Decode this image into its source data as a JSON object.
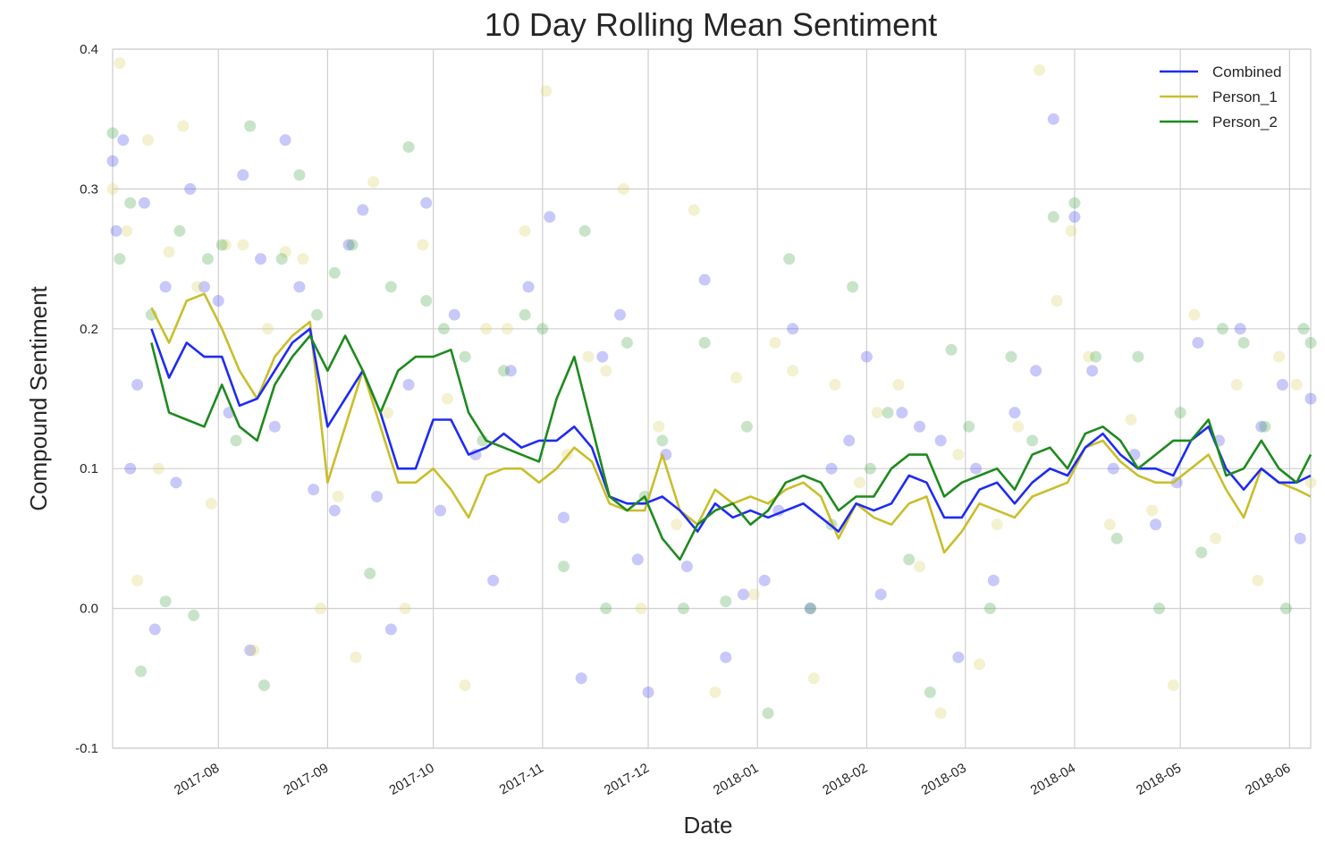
{
  "chart_data": {
    "type": "line",
    "title": "10 Day Rolling Mean Sentiment",
    "xlabel": "Date",
    "ylabel": "Compound Sentiment",
    "ylim": [
      -0.1,
      0.4
    ],
    "xlim": [
      "2017-07-02",
      "2018-06-07"
    ],
    "grid": true,
    "legend_position": "top-right",
    "y_ticks": [
      "-0.1",
      "0.0",
      "0.1",
      "0.2",
      "0.3",
      "0.4"
    ],
    "x_ticks": [
      "2017-08",
      "2017-09",
      "2017-10",
      "2017-11",
      "2017-12",
      "2018-01",
      "2018-02",
      "2018-03",
      "2018-04",
      "2018-05",
      "2018-06"
    ],
    "x_tick_dates": [
      "2017-08-01",
      "2017-09-01",
      "2017-10-01",
      "2017-11-01",
      "2017-12-01",
      "2018-01-01",
      "2018-02-01",
      "2018-03-01",
      "2018-04-01",
      "2018-05-01",
      "2018-06-01"
    ],
    "series": [
      {
        "name": "Combined",
        "color": "#1f2bf2",
        "x": [
          "2017-07-13",
          "2017-07-18",
          "2017-07-23",
          "2017-07-28",
          "2017-08-02",
          "2017-08-07",
          "2017-08-12",
          "2017-08-17",
          "2017-08-22",
          "2017-08-27",
          "2017-09-01",
          "2017-09-06",
          "2017-09-11",
          "2017-09-16",
          "2017-09-21",
          "2017-09-26",
          "2017-10-01",
          "2017-10-06",
          "2017-10-11",
          "2017-10-16",
          "2017-10-21",
          "2017-10-26",
          "2017-10-31",
          "2017-11-05",
          "2017-11-10",
          "2017-11-15",
          "2017-11-20",
          "2017-11-25",
          "2017-11-30",
          "2017-12-05",
          "2017-12-10",
          "2017-12-15",
          "2017-12-20",
          "2017-12-25",
          "2017-12-30",
          "2018-01-04",
          "2018-01-09",
          "2018-01-14",
          "2018-01-19",
          "2018-01-24",
          "2018-01-29",
          "2018-02-03",
          "2018-02-08",
          "2018-02-13",
          "2018-02-18",
          "2018-02-23",
          "2018-02-28",
          "2018-03-05",
          "2018-03-10",
          "2018-03-15",
          "2018-03-20",
          "2018-03-25",
          "2018-03-30",
          "2018-04-04",
          "2018-04-09",
          "2018-04-14",
          "2018-04-19",
          "2018-04-24",
          "2018-04-29",
          "2018-05-04",
          "2018-05-09",
          "2018-05-14",
          "2018-05-19",
          "2018-05-24",
          "2018-05-29",
          "2018-06-03",
          "2018-06-07"
        ],
        "values": [
          0.2,
          0.165,
          0.19,
          0.18,
          0.18,
          0.145,
          0.15,
          0.17,
          0.19,
          0.2,
          0.13,
          0.15,
          0.17,
          0.14,
          0.1,
          0.1,
          0.135,
          0.135,
          0.11,
          0.115,
          0.125,
          0.115,
          0.12,
          0.12,
          0.13,
          0.115,
          0.08,
          0.075,
          0.075,
          0.08,
          0.07,
          0.055,
          0.075,
          0.065,
          0.07,
          0.065,
          0.07,
          0.075,
          0.065,
          0.055,
          0.075,
          0.07,
          0.075,
          0.095,
          0.09,
          0.065,
          0.065,
          0.085,
          0.09,
          0.075,
          0.09,
          0.1,
          0.095,
          0.115,
          0.125,
          0.11,
          0.1,
          0.1,
          0.095,
          0.12,
          0.13,
          0.1,
          0.085,
          0.1,
          0.09,
          0.09,
          0.095
        ]
      },
      {
        "name": "Person_1",
        "color": "#c9be2b",
        "x": [
          "2017-07-13",
          "2017-07-18",
          "2017-07-23",
          "2017-07-28",
          "2017-08-02",
          "2017-08-07",
          "2017-08-12",
          "2017-08-17",
          "2017-08-22",
          "2017-08-27",
          "2017-09-01",
          "2017-09-06",
          "2017-09-11",
          "2017-09-16",
          "2017-09-21",
          "2017-09-26",
          "2017-10-01",
          "2017-10-06",
          "2017-10-11",
          "2017-10-16",
          "2017-10-21",
          "2017-10-26",
          "2017-10-31",
          "2017-11-05",
          "2017-11-10",
          "2017-11-15",
          "2017-11-20",
          "2017-11-25",
          "2017-11-30",
          "2017-12-05",
          "2017-12-10",
          "2017-12-15",
          "2017-12-20",
          "2017-12-25",
          "2017-12-30",
          "2018-01-04",
          "2018-01-09",
          "2018-01-14",
          "2018-01-19",
          "2018-01-24",
          "2018-01-29",
          "2018-02-03",
          "2018-02-08",
          "2018-02-13",
          "2018-02-18",
          "2018-02-23",
          "2018-02-28",
          "2018-03-05",
          "2018-03-10",
          "2018-03-15",
          "2018-03-20",
          "2018-03-25",
          "2018-03-30",
          "2018-04-04",
          "2018-04-09",
          "2018-04-14",
          "2018-04-19",
          "2018-04-24",
          "2018-04-29",
          "2018-05-04",
          "2018-05-09",
          "2018-05-14",
          "2018-05-19",
          "2018-05-24",
          "2018-05-29",
          "2018-06-03",
          "2018-06-07"
        ],
        "values": [
          0.215,
          0.19,
          0.22,
          0.225,
          0.2,
          0.17,
          0.15,
          0.18,
          0.195,
          0.205,
          0.09,
          0.13,
          0.17,
          0.13,
          0.09,
          0.09,
          0.1,
          0.085,
          0.065,
          0.095,
          0.1,
          0.1,
          0.09,
          0.1,
          0.115,
          0.105,
          0.075,
          0.07,
          0.07,
          0.11,
          0.07,
          0.06,
          0.085,
          0.075,
          0.08,
          0.075,
          0.085,
          0.09,
          0.08,
          0.05,
          0.075,
          0.065,
          0.06,
          0.075,
          0.08,
          0.04,
          0.055,
          0.075,
          0.07,
          0.065,
          0.08,
          0.085,
          0.09,
          0.115,
          0.12,
          0.105,
          0.095,
          0.09,
          0.09,
          0.1,
          0.11,
          0.085,
          0.065,
          0.1,
          0.09,
          0.085,
          0.08
        ]
      },
      {
        "name": "Person_2",
        "color": "#1e8a1e",
        "x": [
          "2017-07-13",
          "2017-07-18",
          "2017-07-23",
          "2017-07-28",
          "2017-08-02",
          "2017-08-07",
          "2017-08-12",
          "2017-08-17",
          "2017-08-22",
          "2017-08-27",
          "2017-09-01",
          "2017-09-06",
          "2017-09-11",
          "2017-09-16",
          "2017-09-21",
          "2017-09-26",
          "2017-10-01",
          "2017-10-06",
          "2017-10-11",
          "2017-10-16",
          "2017-10-21",
          "2017-10-26",
          "2017-10-31",
          "2017-11-05",
          "2017-11-10",
          "2017-11-15",
          "2017-11-20",
          "2017-11-25",
          "2017-11-30",
          "2017-12-05",
          "2017-12-10",
          "2017-12-15",
          "2017-12-20",
          "2017-12-25",
          "2017-12-30",
          "2018-01-04",
          "2018-01-09",
          "2018-01-14",
          "2018-01-19",
          "2018-01-24",
          "2018-01-29",
          "2018-02-03",
          "2018-02-08",
          "2018-02-13",
          "2018-02-18",
          "2018-02-23",
          "2018-02-28",
          "2018-03-05",
          "2018-03-10",
          "2018-03-15",
          "2018-03-20",
          "2018-03-25",
          "2018-03-30",
          "2018-04-04",
          "2018-04-09",
          "2018-04-14",
          "2018-04-19",
          "2018-04-24",
          "2018-04-29",
          "2018-05-04",
          "2018-05-09",
          "2018-05-14",
          "2018-05-19",
          "2018-05-24",
          "2018-05-29",
          "2018-06-03",
          "2018-06-07"
        ],
        "values": [
          0.19,
          0.14,
          0.135,
          0.13,
          0.16,
          0.13,
          0.12,
          0.16,
          0.18,
          0.195,
          0.17,
          0.195,
          0.17,
          0.14,
          0.17,
          0.18,
          0.18,
          0.185,
          0.14,
          0.12,
          0.115,
          0.11,
          0.105,
          0.15,
          0.18,
          0.13,
          0.08,
          0.07,
          0.08,
          0.05,
          0.035,
          0.06,
          0.07,
          0.075,
          0.06,
          0.07,
          0.09,
          0.095,
          0.09,
          0.07,
          0.08,
          0.08,
          0.1,
          0.11,
          0.11,
          0.08,
          0.09,
          0.095,
          0.1,
          0.085,
          0.11,
          0.115,
          0.1,
          0.125,
          0.13,
          0.12,
          0.1,
          0.11,
          0.12,
          0.12,
          0.135,
          0.095,
          0.1,
          0.12,
          0.1,
          0.09,
          0.11
        ]
      }
    ],
    "scatter_series": [
      {
        "name": "Combined",
        "color": "#4a4af0",
        "x": [
          "2017-07-02",
          "2017-07-03",
          "2017-07-05",
          "2017-07-07",
          "2017-07-09",
          "2017-07-11",
          "2017-07-14",
          "2017-07-17",
          "2017-07-20",
          "2017-07-24",
          "2017-07-28",
          "2017-08-01",
          "2017-08-04",
          "2017-08-08",
          "2017-08-10",
          "2017-08-13",
          "2017-08-17",
          "2017-08-20",
          "2017-08-24",
          "2017-08-28",
          "2017-09-03",
          "2017-09-07",
          "2017-09-11",
          "2017-09-15",
          "2017-09-19",
          "2017-09-24",
          "2017-09-29",
          "2017-10-03",
          "2017-10-07",
          "2017-10-13",
          "2017-10-18",
          "2017-10-23",
          "2017-10-28",
          "2017-11-03",
          "2017-11-07",
          "2017-11-12",
          "2017-11-18",
          "2017-11-23",
          "2017-11-28",
          "2017-12-01",
          "2017-12-06",
          "2017-12-12",
          "2017-12-17",
          "2017-12-23",
          "2017-12-28",
          "2018-01-03",
          "2018-01-07",
          "2018-01-11",
          "2018-01-16",
          "2018-01-22",
          "2018-01-27",
          "2018-02-01",
          "2018-02-05",
          "2018-02-11",
          "2018-02-16",
          "2018-02-22",
          "2018-02-27",
          "2018-03-04",
          "2018-03-09",
          "2018-03-15",
          "2018-03-21",
          "2018-03-26",
          "2018-04-01",
          "2018-04-06",
          "2018-04-12",
          "2018-04-18",
          "2018-04-24",
          "2018-04-30",
          "2018-05-06",
          "2018-05-12",
          "2018-05-18",
          "2018-05-24",
          "2018-05-30",
          "2018-06-04",
          "2018-06-07"
        ],
        "values": [
          0.32,
          0.27,
          0.335,
          0.1,
          0.16,
          0.29,
          -0.015,
          0.23,
          0.09,
          0.3,
          0.23,
          0.22,
          0.14,
          0.31,
          -0.03,
          0.25,
          0.13,
          0.335,
          0.23,
          0.085,
          0.07,
          0.26,
          0.285,
          0.08,
          -0.015,
          0.16,
          0.29,
          0.07,
          0.21,
          0.11,
          0.02,
          0.17,
          0.23,
          0.28,
          0.065,
          -0.05,
          0.18,
          0.21,
          0.035,
          -0.06,
          0.11,
          0.03,
          0.235,
          -0.035,
          0.01,
          0.02,
          0.07,
          0.2,
          0.0,
          0.1,
          0.12,
          0.18,
          0.01,
          0.14,
          0.13,
          0.12,
          -0.035,
          0.1,
          0.02,
          0.14,
          0.17,
          0.35,
          0.28,
          0.17,
          0.1,
          0.11,
          0.06,
          0.09,
          0.19,
          0.12,
          0.2,
          0.13,
          0.16,
          0.05,
          0.15
        ]
      },
      {
        "name": "Person_1",
        "color": "#d8cf63",
        "x": [
          "2017-07-02",
          "2017-07-04",
          "2017-07-06",
          "2017-07-09",
          "2017-07-12",
          "2017-07-15",
          "2017-07-18",
          "2017-07-22",
          "2017-07-26",
          "2017-07-30",
          "2017-08-03",
          "2017-08-08",
          "2017-08-11",
          "2017-08-15",
          "2017-08-20",
          "2017-08-25",
          "2017-08-30",
          "2017-09-04",
          "2017-09-09",
          "2017-09-14",
          "2017-09-18",
          "2017-09-23",
          "2017-09-28",
          "2017-10-05",
          "2017-10-10",
          "2017-10-16",
          "2017-10-22",
          "2017-10-27",
          "2017-11-02",
          "2017-11-08",
          "2017-11-14",
          "2017-11-19",
          "2017-11-24",
          "2017-11-29",
          "2017-12-04",
          "2017-12-09",
          "2017-12-14",
          "2017-12-20",
          "2017-12-26",
          "2017-12-31",
          "2018-01-06",
          "2018-01-11",
          "2018-01-17",
          "2018-01-23",
          "2018-01-30",
          "2018-02-04",
          "2018-02-10",
          "2018-02-16",
          "2018-02-22",
          "2018-02-27",
          "2018-03-05",
          "2018-03-10",
          "2018-03-16",
          "2018-03-22",
          "2018-03-27",
          "2018-03-31",
          "2018-04-05",
          "2018-04-11",
          "2018-04-17",
          "2018-04-23",
          "2018-04-29",
          "2018-05-05",
          "2018-05-11",
          "2018-05-17",
          "2018-05-23",
          "2018-05-29",
          "2018-06-03",
          "2018-06-07"
        ],
        "values": [
          0.3,
          0.39,
          0.27,
          0.02,
          0.335,
          0.1,
          0.255,
          0.345,
          0.23,
          0.075,
          0.26,
          0.26,
          -0.03,
          0.2,
          0.255,
          0.25,
          0.0,
          0.08,
          -0.035,
          0.305,
          0.14,
          0.0,
          0.26,
          0.15,
          -0.055,
          0.2,
          0.2,
          0.27,
          0.37,
          0.11,
          0.18,
          0.17,
          0.3,
          0.0,
          0.13,
          0.06,
          0.285,
          -0.06,
          0.165,
          0.01,
          0.19,
          0.17,
          -0.05,
          0.16,
          0.09,
          0.14,
          0.16,
          0.03,
          -0.075,
          0.11,
          -0.04,
          0.06,
          0.13,
          0.385,
          0.22,
          0.27,
          0.18,
          0.06,
          0.135,
          0.07,
          -0.055,
          0.21,
          0.05,
          0.16,
          0.02,
          0.18,
          0.16,
          0.09
        ]
      },
      {
        "name": "Person_2",
        "color": "#4aa64a",
        "x": [
          "2017-07-02",
          "2017-07-04",
          "2017-07-07",
          "2017-07-10",
          "2017-07-13",
          "2017-07-17",
          "2017-07-21",
          "2017-07-25",
          "2017-07-29",
          "2017-08-02",
          "2017-08-06",
          "2017-08-10",
          "2017-08-14",
          "2017-08-19",
          "2017-08-24",
          "2017-08-29",
          "2017-09-03",
          "2017-09-08",
          "2017-09-13",
          "2017-09-19",
          "2017-09-24",
          "2017-09-29",
          "2017-10-04",
          "2017-10-10",
          "2017-10-15",
          "2017-10-21",
          "2017-10-27",
          "2017-11-01",
          "2017-11-07",
          "2017-11-13",
          "2017-11-19",
          "2017-11-25",
          "2017-11-30",
          "2017-12-05",
          "2017-12-11",
          "2017-12-17",
          "2017-12-23",
          "2017-12-29",
          "2018-01-04",
          "2018-01-10",
          "2018-01-16",
          "2018-01-22",
          "2018-01-28",
          "2018-02-02",
          "2018-02-07",
          "2018-02-13",
          "2018-02-19",
          "2018-02-25",
          "2018-03-02",
          "2018-03-08",
          "2018-03-14",
          "2018-03-20",
          "2018-03-26",
          "2018-04-01",
          "2018-04-07",
          "2018-04-13",
          "2018-04-19",
          "2018-04-25",
          "2018-05-01",
          "2018-05-07",
          "2018-05-13",
          "2018-05-19",
          "2018-05-25",
          "2018-05-31",
          "2018-06-05",
          "2018-06-07"
        ],
        "values": [
          0.34,
          0.25,
          0.29,
          -0.045,
          0.21,
          0.005,
          0.27,
          -0.005,
          0.25,
          0.26,
          0.12,
          0.345,
          -0.055,
          0.25,
          0.31,
          0.21,
          0.24,
          0.26,
          0.025,
          0.23,
          0.33,
          0.22,
          0.2,
          0.18,
          0.12,
          0.17,
          0.21,
          0.2,
          0.03,
          0.27,
          0.0,
          0.19,
          0.08,
          0.12,
          0.0,
          0.19,
          0.005,
          0.13,
          -0.075,
          0.25,
          0.0,
          0.06,
          0.23,
          0.1,
          0.14,
          0.035,
          -0.06,
          0.185,
          0.13,
          0.0,
          0.18,
          0.12,
          0.28,
          0.29,
          0.18,
          0.05,
          0.18,
          0.0,
          0.14,
          0.04,
          0.2,
          0.19,
          0.13,
          0.0,
          0.2,
          0.19
        ]
      }
    ]
  }
}
